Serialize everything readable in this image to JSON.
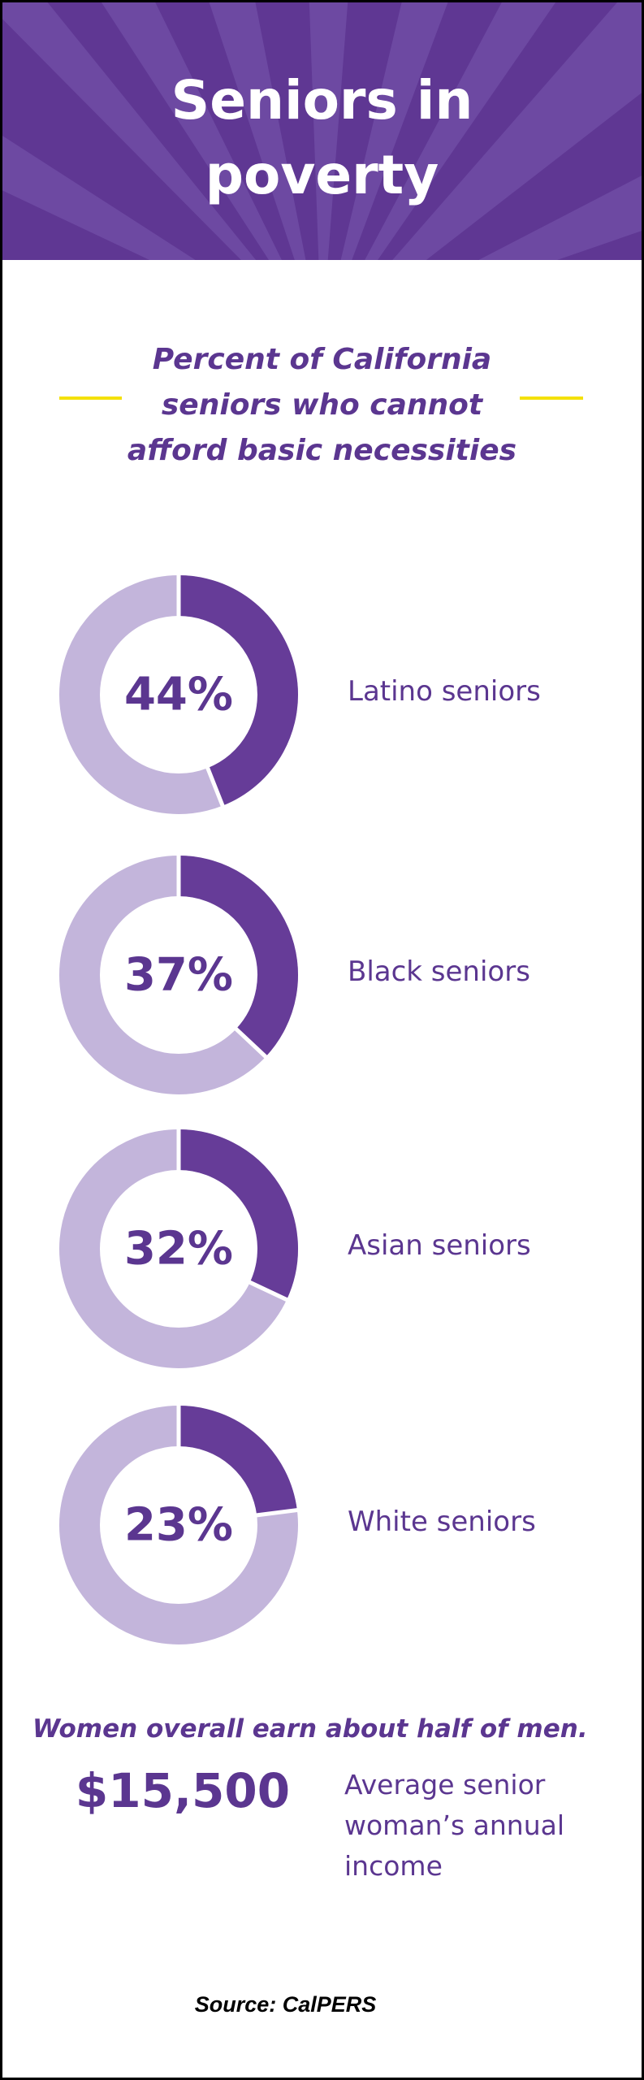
{
  "title": "Seniors in poverty",
  "chart_data": {
    "type": "donut",
    "title": "Percent of California seniors who cannot afford basic necessities",
    "categories": [
      "Latino seniors",
      "Black seniors",
      "Asian seniors",
      "White seniors"
    ],
    "values": [
      44,
      37,
      32,
      23
    ],
    "value_labels": [
      "44%",
      "37%",
      "32%",
      "23%"
    ],
    "color": "#663c98"
  },
  "income": {
    "note": "Women overall earn about half of men.",
    "amount": "$15,500",
    "description": "Average senior woman’s annual income"
  },
  "source": "Source: CalPERS"
}
